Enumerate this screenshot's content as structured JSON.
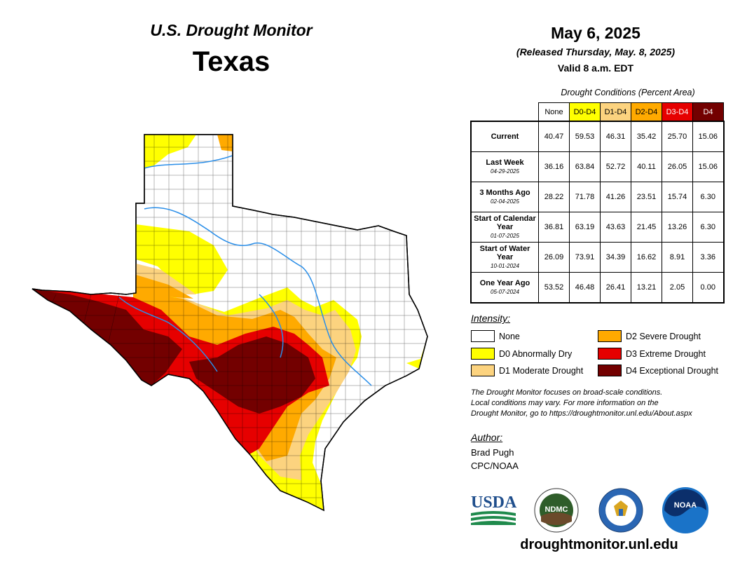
{
  "header": {
    "title": "U.S. Drought Monitor",
    "state": "Texas",
    "date": "May 6, 2025",
    "released": "(Released Thursday, May. 8, 2025)",
    "valid": "Valid 8 a.m. EDT"
  },
  "table": {
    "caption": "Drought Conditions (Percent Area)",
    "columns": [
      "None",
      "D0-D4",
      "D1-D4",
      "D2-D4",
      "D3-D4",
      "D4"
    ],
    "rows": [
      {
        "label": "Current",
        "date": "",
        "values": [
          "40.47",
          "59.53",
          "46.31",
          "35.42",
          "25.70",
          "15.06"
        ]
      },
      {
        "label": "Last Week",
        "date": "04-29-2025",
        "values": [
          "36.16",
          "63.84",
          "52.72",
          "40.11",
          "26.05",
          "15.06"
        ]
      },
      {
        "label": "3 Months Ago",
        "date": "02-04-2025",
        "values": [
          "28.22",
          "71.78",
          "41.26",
          "23.51",
          "15.74",
          "6.30"
        ]
      },
      {
        "label": "Start of Calendar Year",
        "date": "01-07-2025",
        "values": [
          "36.81",
          "63.19",
          "43.63",
          "21.45",
          "13.26",
          "6.30"
        ]
      },
      {
        "label": "Start of Water Year",
        "date": "10-01-2024",
        "values": [
          "26.09",
          "73.91",
          "34.39",
          "16.62",
          "8.91",
          "3.36"
        ]
      },
      {
        "label": "One Year Ago",
        "date": "05-07-2024",
        "values": [
          "53.52",
          "46.48",
          "26.41",
          "13.21",
          "2.05",
          "0.00"
        ]
      }
    ]
  },
  "legend": {
    "title": "Intensity:",
    "items": [
      {
        "label": "None",
        "color": "#ffffff"
      },
      {
        "label": "D0 Abnormally Dry",
        "color": "#ffff00"
      },
      {
        "label": "D1 Moderate Drought",
        "color": "#fcd37f"
      },
      {
        "label": "D2 Severe Drought",
        "color": "#ffaa00"
      },
      {
        "label": "D3 Extreme Drought",
        "color": "#e60000"
      },
      {
        "label": "D4 Exceptional Drought",
        "color": "#730000"
      }
    ]
  },
  "note": {
    "line1": "The Drought Monitor focuses on broad-scale conditions.",
    "line2": "Local conditions may vary. For more information on the",
    "line3": "Drought Monitor, go to https://droughtmonitor.unl.edu/About.aspx"
  },
  "author": {
    "title": "Author:",
    "name": "Brad Pugh",
    "org": "CPC/NOAA"
  },
  "logos": {
    "usda": "USDA",
    "ndmc": "NDMC",
    "noaa": "NOAA"
  },
  "website": "droughtmonitor.unl.edu",
  "colors": {
    "none": "#ffffff",
    "d0": "#ffff00",
    "d1": "#fcd37f",
    "d2": "#ffaa00",
    "d3": "#e60000",
    "d4": "#730000",
    "river": "#2a8ee8"
  }
}
